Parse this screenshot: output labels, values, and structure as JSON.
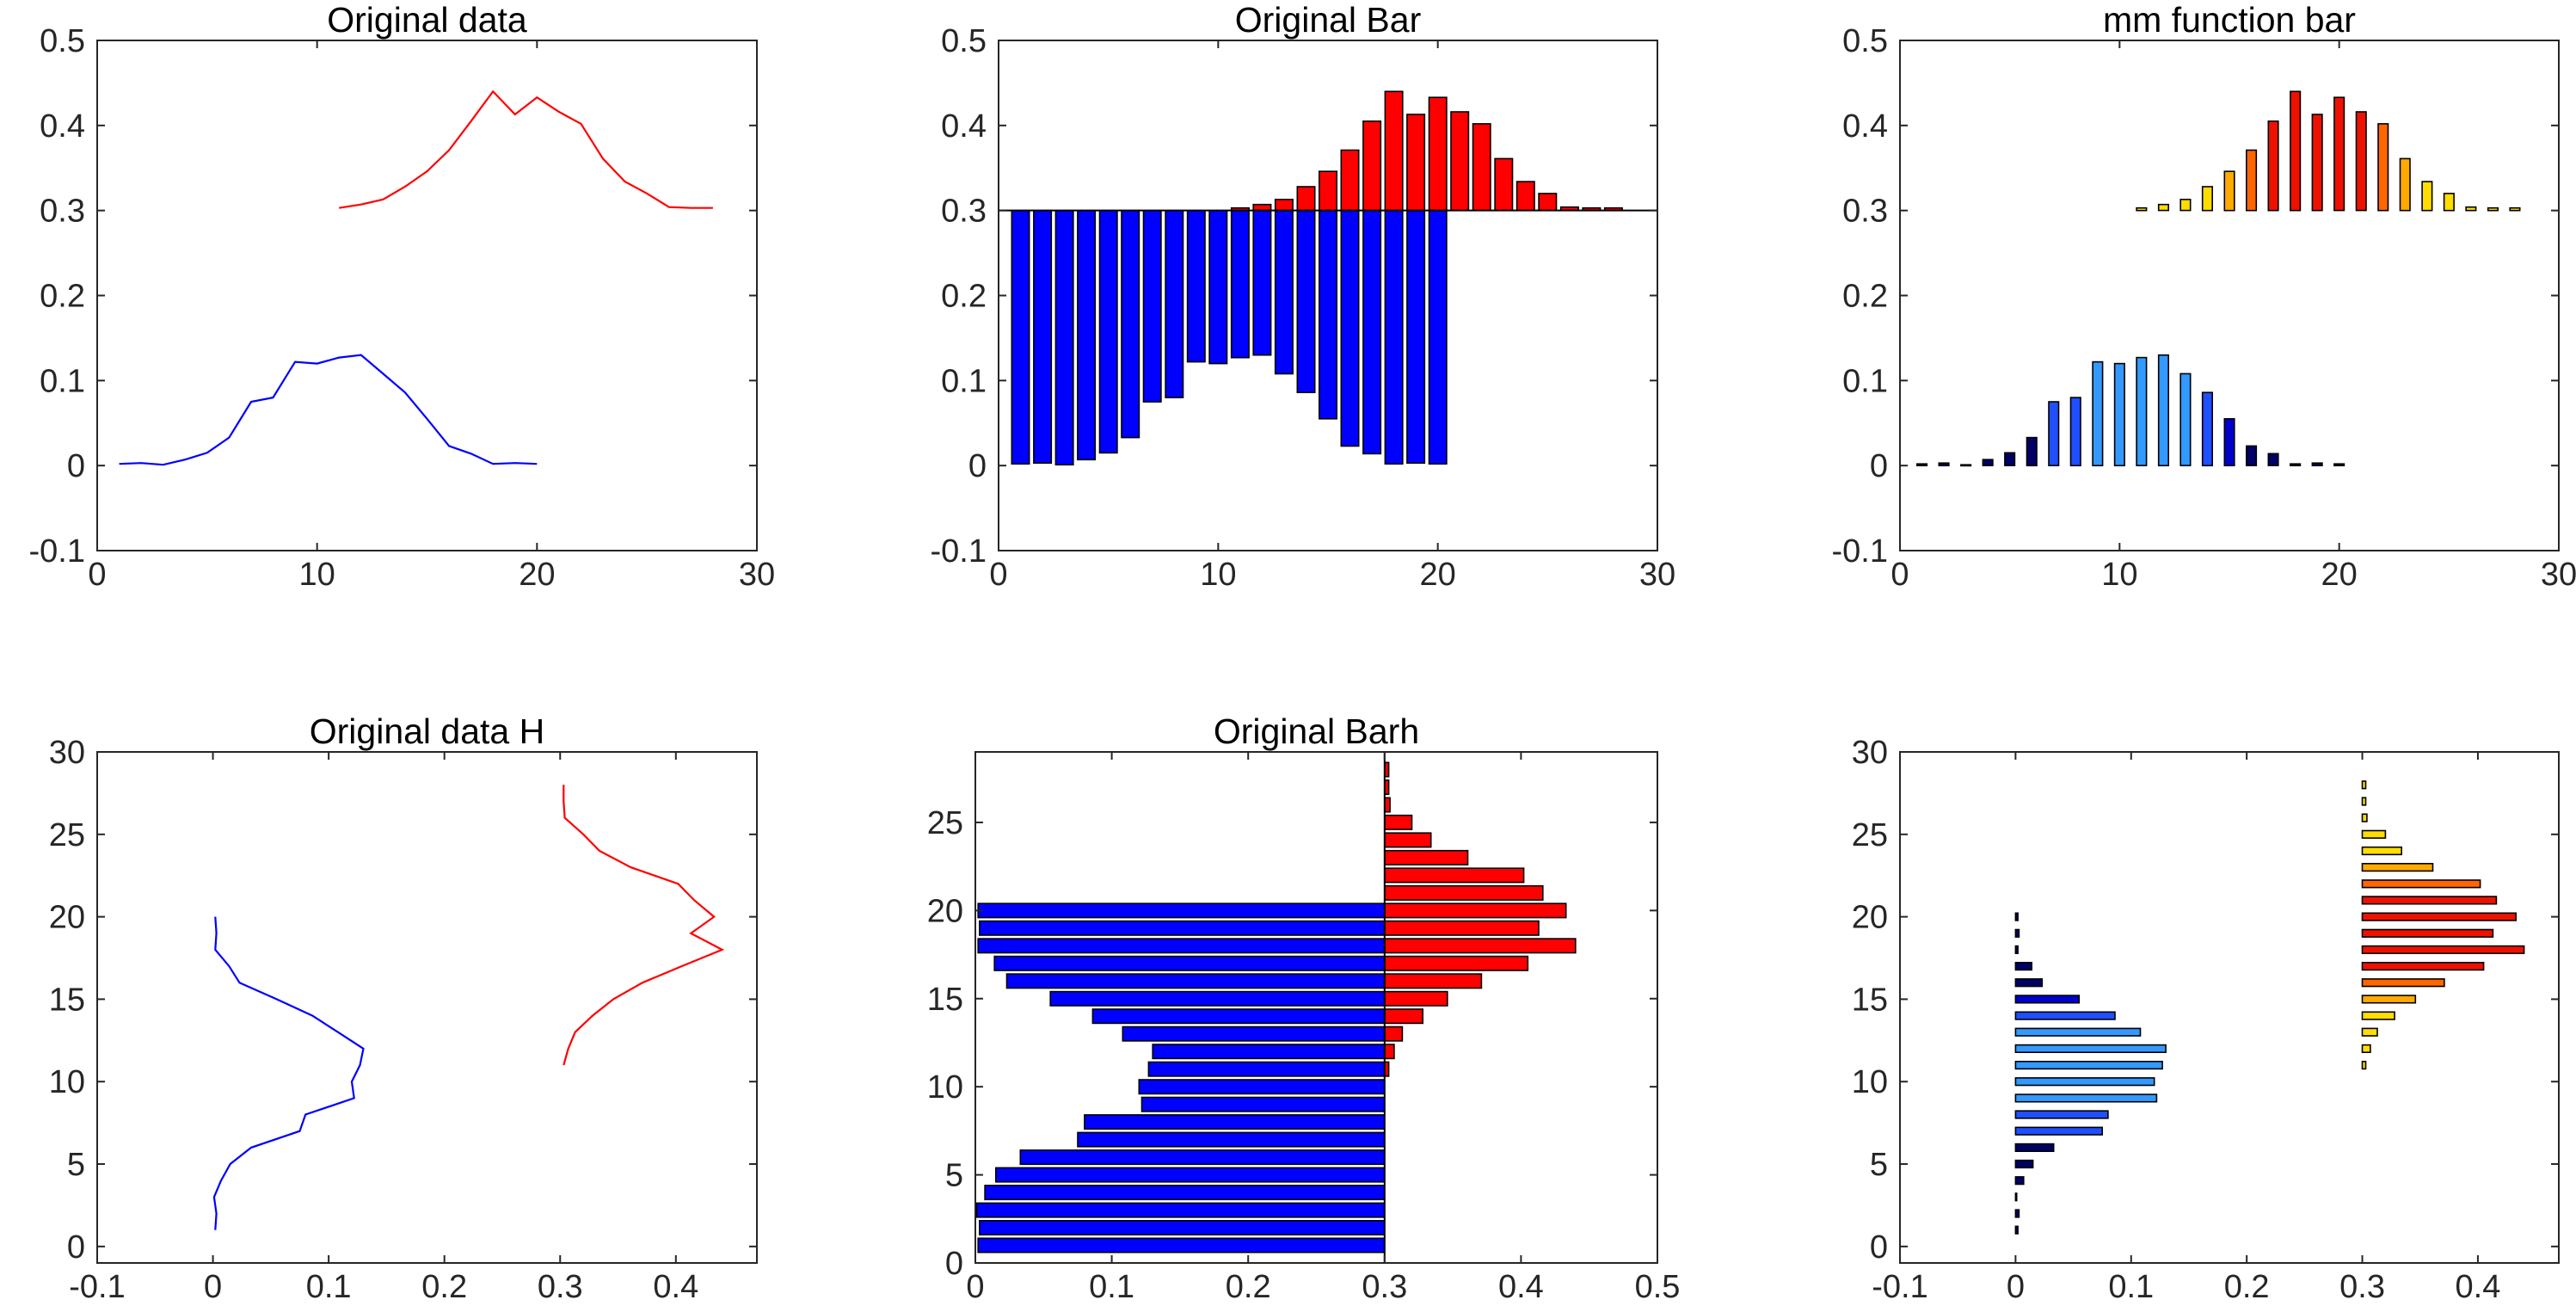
{
  "chart_data": [
    {
      "type": "line",
      "orientation": "vertical",
      "title": "Original data",
      "xlim": [
        0,
        30
      ],
      "ylim": [
        -0.1,
        0.5
      ],
      "xticks": [
        0,
        10,
        20,
        30
      ],
      "yticks": [
        -0.1,
        0,
        0.1,
        0.2,
        0.3,
        0.4,
        0.5
      ],
      "xtick_labels": [
        "0",
        "10",
        "20",
        "30"
      ],
      "ytick_labels": [
        "-0.1",
        "0",
        "0.1",
        "0.2",
        "0.3",
        "0.4",
        "0.5"
      ],
      "series": [
        {
          "color": "#0000ff",
          "x": [
            1,
            2,
            3,
            4,
            5,
            6,
            7,
            8,
            9,
            10,
            11,
            12,
            13,
            14,
            15,
            16,
            17,
            18,
            19,
            20
          ],
          "values": [
            0.002,
            0.003,
            0.001,
            0.007,
            0.015,
            0.033,
            0.075,
            0.08,
            0.122,
            0.12,
            0.127,
            0.13,
            0.108,
            0.086,
            0.055,
            0.023,
            0.014,
            0.002,
            0.003,
            0.002
          ]
        },
        {
          "color": "#ff0000",
          "x": [
            11,
            12,
            13,
            14,
            15,
            16,
            17,
            18,
            19,
            20,
            21,
            22,
            23,
            24,
            25,
            26,
            27,
            28
          ],
          "values": [
            0.303,
            0.307,
            0.313,
            0.328,
            0.346,
            0.371,
            0.405,
            0.44,
            0.413,
            0.433,
            0.416,
            0.402,
            0.361,
            0.334,
            0.32,
            0.304,
            0.303,
            0.303
          ]
        }
      ]
    },
    {
      "type": "bar",
      "orientation": "vertical",
      "title": "Original Bar",
      "baseline": 0.3,
      "xlim": [
        0,
        30
      ],
      "ylim": [
        -0.1,
        0.5
      ],
      "xticks": [
        0,
        10,
        20,
        30
      ],
      "yticks": [
        -0.1,
        0,
        0.1,
        0.2,
        0.3,
        0.4,
        0.5
      ],
      "xtick_labels": [
        "0",
        "10",
        "20",
        "30"
      ],
      "ytick_labels": [
        "-0.1",
        "0",
        "0.1",
        "0.2",
        "0.3",
        "0.4",
        "0.5"
      ],
      "series": [
        {
          "color": "#0000ff",
          "x": [
            1,
            2,
            3,
            4,
            5,
            6,
            7,
            8,
            9,
            10,
            11,
            12,
            13,
            14,
            15,
            16,
            17,
            18,
            19,
            20
          ],
          "values": [
            0.002,
            0.003,
            0.001,
            0.007,
            0.015,
            0.033,
            0.075,
            0.08,
            0.122,
            0.12,
            0.127,
            0.13,
            0.108,
            0.086,
            0.055,
            0.023,
            0.014,
            0.002,
            0.003,
            0.002
          ]
        },
        {
          "color": "#ff0000",
          "x": [
            11,
            12,
            13,
            14,
            15,
            16,
            17,
            18,
            19,
            20,
            21,
            22,
            23,
            24,
            25,
            26,
            27,
            28
          ],
          "values": [
            0.303,
            0.307,
            0.313,
            0.328,
            0.346,
            0.371,
            0.405,
            0.44,
            0.413,
            0.433,
            0.416,
            0.402,
            0.361,
            0.334,
            0.32,
            0.304,
            0.303,
            0.303
          ]
        }
      ]
    },
    {
      "type": "bar",
      "orientation": "vertical",
      "title": "mm function bar",
      "baseline_per_series": [
        0,
        0.3
      ],
      "colormap": [
        "#000066",
        "#0000cc",
        "#1f4fff",
        "#3399ff",
        "#ffdd00",
        "#ffaa00",
        "#ff6600",
        "#ee1100"
      ],
      "xlim": [
        0,
        30
      ],
      "ylim": [
        -0.1,
        0.5
      ],
      "xticks": [
        0,
        10,
        20,
        30
      ],
      "yticks": [
        -0.1,
        0,
        0.1,
        0.2,
        0.3,
        0.4,
        0.5
      ],
      "xtick_labels": [
        "0",
        "10",
        "20",
        "30"
      ],
      "ytick_labels": [
        "-0.1",
        "0",
        "0.1",
        "0.2",
        "0.3",
        "0.4",
        "0.5"
      ],
      "series": [
        {
          "x": [
            1,
            2,
            3,
            4,
            5,
            6,
            7,
            8,
            9,
            10,
            11,
            12,
            13,
            14,
            15,
            16,
            17,
            18,
            19,
            20
          ],
          "values": [
            0.002,
            0.003,
            0.001,
            0.007,
            0.015,
            0.033,
            0.075,
            0.08,
            0.122,
            0.12,
            0.127,
            0.13,
            0.108,
            0.086,
            0.055,
            0.023,
            0.014,
            0.002,
            0.003,
            0.002
          ]
        },
        {
          "x": [
            11,
            12,
            13,
            14,
            15,
            16,
            17,
            18,
            19,
            20,
            21,
            22,
            23,
            24,
            25,
            26,
            27,
            28
          ],
          "values": [
            0.303,
            0.307,
            0.313,
            0.328,
            0.346,
            0.371,
            0.405,
            0.44,
            0.413,
            0.433,
            0.416,
            0.402,
            0.361,
            0.334,
            0.32,
            0.304,
            0.303,
            0.303
          ]
        }
      ]
    },
    {
      "type": "line",
      "orientation": "horizontal",
      "title": "Original data H",
      "xlim": [
        -0.1,
        0.47
      ],
      "ylim": [
        -1,
        30
      ],
      "xticks": [
        -0.1,
        0,
        0.1,
        0.2,
        0.3,
        0.4
      ],
      "yticks": [
        0,
        5,
        10,
        15,
        20,
        25,
        30
      ],
      "xtick_labels": [
        "-0.1",
        "0",
        "0.1",
        "0.2",
        "0.3",
        "0.4"
      ],
      "ytick_labels": [
        "0",
        "5",
        "10",
        "15",
        "20",
        "25",
        "30"
      ],
      "series": [
        {
          "color": "#0000ff",
          "y": [
            1,
            2,
            3,
            4,
            5,
            6,
            7,
            8,
            9,
            10,
            11,
            12,
            13,
            14,
            15,
            16,
            17,
            18,
            19,
            20
          ],
          "values": [
            0.002,
            0.003,
            0.001,
            0.007,
            0.015,
            0.033,
            0.075,
            0.08,
            0.122,
            0.12,
            0.127,
            0.13,
            0.108,
            0.086,
            0.055,
            0.023,
            0.014,
            0.002,
            0.003,
            0.002
          ]
        },
        {
          "color": "#ff0000",
          "y": [
            11,
            12,
            13,
            14,
            15,
            16,
            17,
            18,
            19,
            20,
            21,
            22,
            23,
            24,
            25,
            26,
            27,
            28
          ],
          "values": [
            0.303,
            0.307,
            0.313,
            0.328,
            0.346,
            0.371,
            0.405,
            0.44,
            0.413,
            0.433,
            0.416,
            0.402,
            0.361,
            0.334,
            0.32,
            0.304,
            0.303,
            0.303
          ]
        }
      ]
    },
    {
      "type": "bar",
      "orientation": "horizontal",
      "title": "Original Barh",
      "baseline": 0.3,
      "xlim": [
        0,
        0.5
      ],
      "ylim": [
        0,
        29
      ],
      "xticks": [
        0,
        0.1,
        0.2,
        0.3,
        0.4,
        0.5
      ],
      "yticks": [
        0,
        5,
        10,
        15,
        20,
        25
      ],
      "xtick_labels": [
        "0",
        "0.1",
        "0.2",
        "0.3",
        "0.4",
        "0.5"
      ],
      "ytick_labels": [
        "0",
        "5",
        "10",
        "15",
        "20",
        "25"
      ],
      "series": [
        {
          "color": "#0000ff",
          "y": [
            1,
            2,
            3,
            4,
            5,
            6,
            7,
            8,
            9,
            10,
            11,
            12,
            13,
            14,
            15,
            16,
            17,
            18,
            19,
            20
          ],
          "values": [
            0.002,
            0.003,
            0.001,
            0.007,
            0.015,
            0.033,
            0.075,
            0.08,
            0.122,
            0.12,
            0.127,
            0.13,
            0.108,
            0.086,
            0.055,
            0.023,
            0.014,
            0.002,
            0.003,
            0.002
          ]
        },
        {
          "color": "#ff0000",
          "y": [
            11,
            12,
            13,
            14,
            15,
            16,
            17,
            18,
            19,
            20,
            21,
            22,
            23,
            24,
            25,
            26,
            27,
            28
          ],
          "values": [
            0.303,
            0.307,
            0.313,
            0.328,
            0.346,
            0.371,
            0.405,
            0.44,
            0.413,
            0.433,
            0.416,
            0.402,
            0.361,
            0.334,
            0.32,
            0.304,
            0.303,
            0.303
          ]
        }
      ]
    },
    {
      "type": "bar",
      "orientation": "horizontal",
      "title": "",
      "baseline_per_series": [
        0,
        0.3
      ],
      "colormap": [
        "#000066",
        "#0000cc",
        "#1f4fff",
        "#3399ff",
        "#ffdd00",
        "#ffaa00",
        "#ff6600",
        "#ee1100"
      ],
      "xlim": [
        -0.1,
        0.47
      ],
      "ylim": [
        -1,
        30
      ],
      "xticks": [
        -0.1,
        0,
        0.1,
        0.2,
        0.3,
        0.4
      ],
      "yticks": [
        0,
        5,
        10,
        15,
        20,
        25,
        30
      ],
      "xtick_labels": [
        "-0.1",
        "0",
        "0.1",
        "0.2",
        "0.3",
        "0.4"
      ],
      "ytick_labels": [
        "0",
        "5",
        "10",
        "15",
        "20",
        "25",
        "30"
      ],
      "series": [
        {
          "y": [
            1,
            2,
            3,
            4,
            5,
            6,
            7,
            8,
            9,
            10,
            11,
            12,
            13,
            14,
            15,
            16,
            17,
            18,
            19,
            20
          ],
          "values": [
            0.002,
            0.003,
            0.001,
            0.007,
            0.015,
            0.033,
            0.075,
            0.08,
            0.122,
            0.12,
            0.127,
            0.13,
            0.108,
            0.086,
            0.055,
            0.023,
            0.014,
            0.002,
            0.003,
            0.002
          ]
        },
        {
          "y": [
            11,
            12,
            13,
            14,
            15,
            16,
            17,
            18,
            19,
            20,
            21,
            22,
            23,
            24,
            25,
            26,
            27,
            28
          ],
          "values": [
            0.303,
            0.307,
            0.313,
            0.328,
            0.346,
            0.371,
            0.405,
            0.44,
            0.413,
            0.433,
            0.416,
            0.402,
            0.361,
            0.334,
            0.32,
            0.304,
            0.303,
            0.303
          ]
        }
      ]
    }
  ]
}
